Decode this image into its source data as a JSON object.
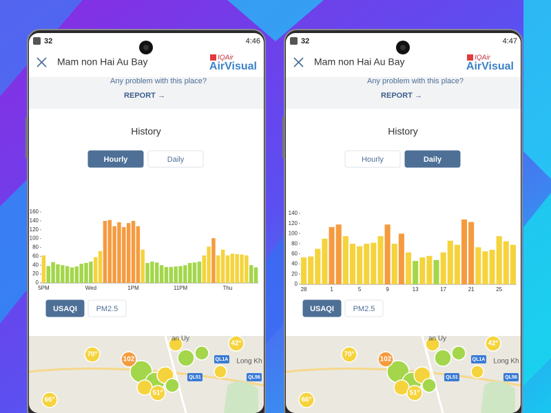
{
  "phones": [
    {
      "status": {
        "battery": "32",
        "time": "4:46"
      },
      "header": {
        "title": "Mam non Hai Au Bay",
        "brand_top": "IQAir",
        "brand": "AirVisual"
      },
      "report": {
        "question": "Any problem with this place?",
        "button": "REPORT →"
      },
      "history": {
        "title": "History",
        "tabs": [
          "Hourly",
          "Daily"
        ],
        "active_tab": 0
      },
      "pollutant_tabs": [
        "USAQI",
        "PM2.5"
      ],
      "active_pollutant": 0,
      "map_labels": [
        "an Uy",
        "70°",
        "102",
        "42°",
        "Long Kh",
        "QL1A",
        "QL51",
        "QL56",
        "66°",
        "51°"
      ]
    },
    {
      "status": {
        "battery": "32",
        "time": "4:47"
      },
      "header": {
        "title": "Mam non Hai Au Bay",
        "brand_top": "IQAir",
        "brand": "AirVisual"
      },
      "report": {
        "question": "Any problem with this place?",
        "button": "REPORT →"
      },
      "history": {
        "title": "History",
        "tabs": [
          "Hourly",
          "Daily"
        ],
        "active_tab": 1
      },
      "pollutant_tabs": [
        "USAQI",
        "PM2.5"
      ],
      "active_pollutant": 0,
      "map_labels": [
        "an Uy",
        "70°",
        "102",
        "42°",
        "Long Kh",
        "QL1A",
        "QL51",
        "QL56",
        "66°",
        "51°"
      ]
    }
  ],
  "chart_data": [
    {
      "type": "bar",
      "categories": [
        "5PM",
        null,
        null,
        null,
        null,
        null,
        null,
        null,
        null,
        null,
        "Wed",
        null,
        null,
        null,
        null,
        null,
        null,
        null,
        null,
        "1PM",
        null,
        null,
        null,
        null,
        null,
        null,
        null,
        null,
        null,
        "11PM",
        null,
        null,
        null,
        null,
        null,
        null,
        null,
        null,
        null,
        "Thu",
        null,
        null,
        null,
        null,
        null,
        null
      ],
      "values": [
        62,
        38,
        47,
        42,
        40,
        38,
        35,
        37,
        43,
        45,
        48,
        58,
        72,
        140,
        142,
        128,
        137,
        126,
        135,
        140,
        128,
        75,
        45,
        48,
        46,
        40,
        36,
        36,
        37,
        38,
        40,
        45,
        46,
        48,
        62,
        82,
        101,
        62,
        75,
        62,
        66,
        65,
        64,
        62,
        40,
        35
      ],
      "colors": [
        "#f5d33d",
        "#a3d64b",
        "#a3d64b",
        "#a3d64b",
        "#a3d64b",
        "#a3d64b",
        "#a3d64b",
        "#a3d64b",
        "#a3d64b",
        "#a3d64b",
        "#a3d64b",
        "#f5d33d",
        "#f5d33d",
        "#f59b3f",
        "#f59b3f",
        "#f59b3f",
        "#f59b3f",
        "#f59b3f",
        "#f59b3f",
        "#f59b3f",
        "#f59b3f",
        "#f5d33d",
        "#a3d64b",
        "#a3d64b",
        "#a3d64b",
        "#a3d64b",
        "#a3d64b",
        "#a3d64b",
        "#a3d64b",
        "#a3d64b",
        "#a3d64b",
        "#a3d64b",
        "#a3d64b",
        "#a3d64b",
        "#f5d33d",
        "#f5d33d",
        "#f59b3f",
        "#f5d33d",
        "#f5d33d",
        "#f5d33d",
        "#f5d33d",
        "#f5d33d",
        "#f5d33d",
        "#f5d33d",
        "#a3d64b",
        "#a3d64b"
      ],
      "ylim": [
        0,
        160
      ],
      "yticks": [
        0,
        20,
        40,
        60,
        80,
        100,
        120,
        140,
        160
      ],
      "grid": false
    },
    {
      "type": "bar",
      "categories": [
        "28",
        null,
        null,
        null,
        "1",
        null,
        null,
        null,
        "5",
        null,
        null,
        null,
        "9",
        null,
        null,
        null,
        "13",
        null,
        null,
        null,
        "17",
        null,
        null,
        null,
        "21",
        null,
        null,
        null,
        "25",
        null,
        null
      ],
      "values": [
        53,
        55,
        70,
        90,
        113,
        118,
        95,
        80,
        75,
        80,
        82,
        95,
        118,
        80,
        100,
        63,
        46,
        53,
        56,
        48,
        63,
        86,
        78,
        128,
        123,
        73,
        65,
        68,
        95,
        85,
        78
      ],
      "colors": [
        "#f5d33d",
        "#f5d33d",
        "#f5d33d",
        "#f5d33d",
        "#f59b3f",
        "#f59b3f",
        "#f5d33d",
        "#f5d33d",
        "#f5d33d",
        "#f5d33d",
        "#f5d33d",
        "#f5d33d",
        "#f59b3f",
        "#f5d33d",
        "#f59b3f",
        "#f5d33d",
        "#a3d64b",
        "#f5d33d",
        "#f5d33d",
        "#a3d64b",
        "#f5d33d",
        "#f5d33d",
        "#f5d33d",
        "#f59b3f",
        "#f59b3f",
        "#f5d33d",
        "#f5d33d",
        "#f5d33d",
        "#f5d33d",
        "#f5d33d",
        "#f5d33d"
      ],
      "ylim": [
        0,
        140
      ],
      "yticks": [
        0,
        20,
        40,
        60,
        80,
        100,
        120,
        140
      ],
      "grid": false
    }
  ]
}
